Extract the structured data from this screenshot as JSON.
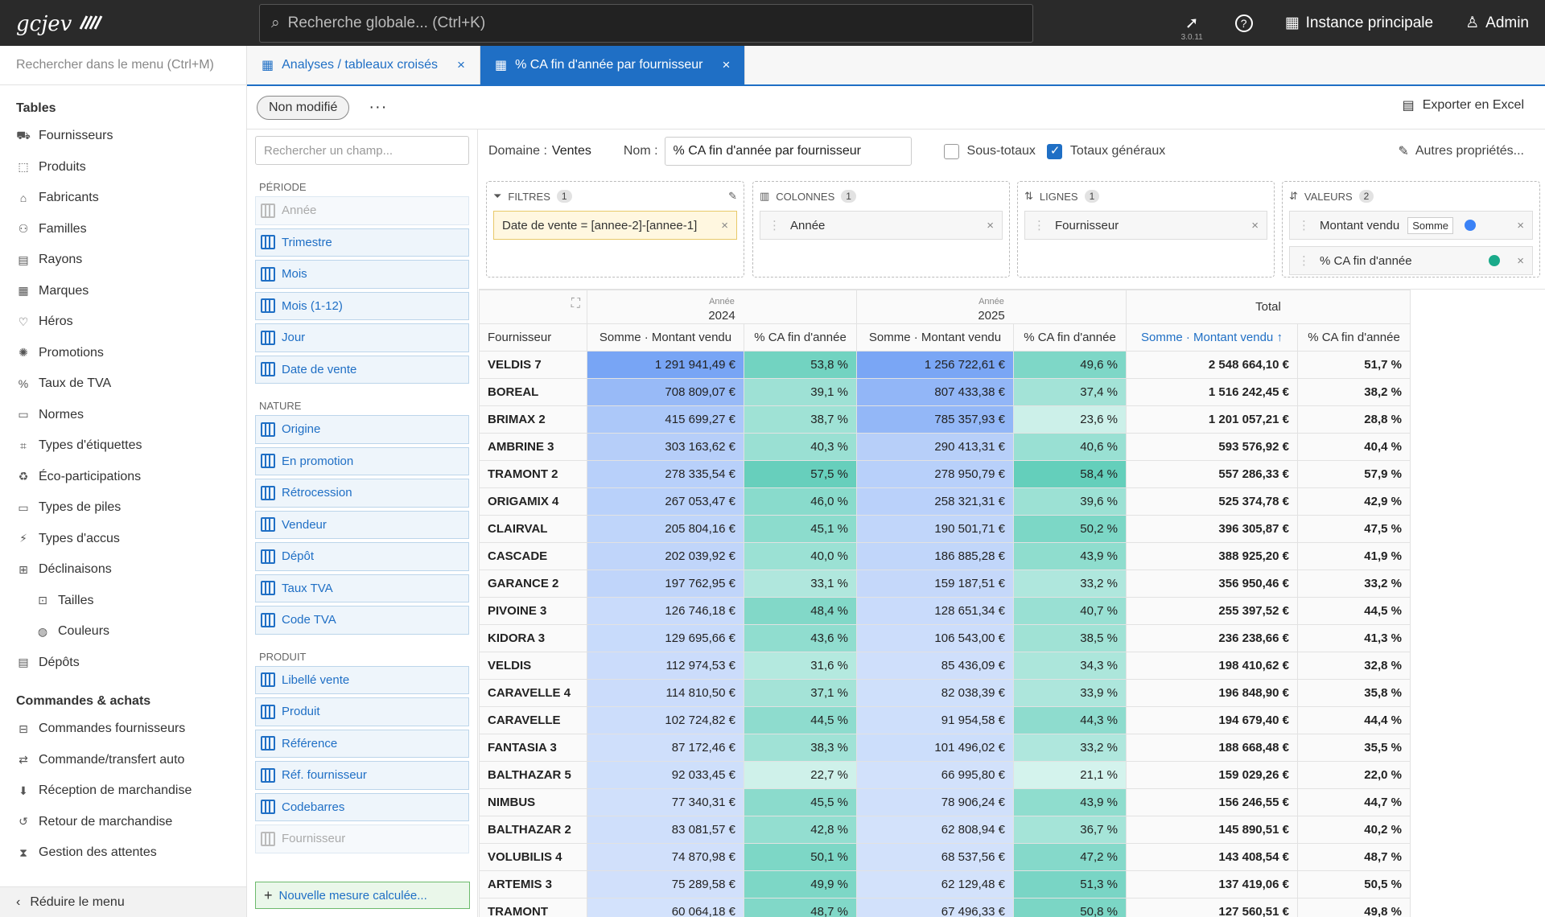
{
  "topbar": {
    "logo": "gcjev",
    "search_placeholder": "Recherche globale... (Ctrl+K)",
    "version": "3.0.11",
    "instance": "Instance principale",
    "user": "Admin"
  },
  "sidebar": {
    "search": "Rechercher dans le menu (Ctrl+M)",
    "section1": "Tables",
    "items": [
      {
        "label": "Fournisseurs",
        "icon": "truck-icon"
      },
      {
        "label": "Produits",
        "icon": "box-icon"
      },
      {
        "label": "Fabricants",
        "icon": "factory-icon"
      },
      {
        "label": "Familles",
        "icon": "family-icon"
      },
      {
        "label": "Rayons",
        "icon": "shelf-icon"
      },
      {
        "label": "Marques",
        "icon": "building-icon"
      },
      {
        "label": "Héros",
        "icon": "heart-icon"
      },
      {
        "label": "Promotions",
        "icon": "promo-icon"
      },
      {
        "label": "Taux de TVA",
        "icon": "percent-icon"
      },
      {
        "label": "Normes",
        "icon": "norm-icon"
      },
      {
        "label": "Types d'étiquettes",
        "icon": "tag-icon"
      },
      {
        "label": "Éco-participations",
        "icon": "eco-icon"
      },
      {
        "label": "Types de piles",
        "icon": "battery-icon"
      },
      {
        "label": "Types d'accus",
        "icon": "accu-icon"
      },
      {
        "label": "Déclinaisons",
        "icon": "variants-icon"
      }
    ],
    "subitems": [
      {
        "label": "Tailles",
        "icon": "size-icon"
      },
      {
        "label": "Couleurs",
        "icon": "palette-icon"
      }
    ],
    "item_depots": "Dépôts",
    "section2": "Commandes & achats",
    "items2": [
      {
        "label": "Commandes fournisseurs",
        "icon": "order-icon"
      },
      {
        "label": "Commande/transfert auto",
        "icon": "transfer-icon"
      },
      {
        "label": "Réception de marchandise",
        "icon": "receive-icon"
      },
      {
        "label": "Retour de marchandise",
        "icon": "return-icon"
      },
      {
        "label": "Gestion des attentes",
        "icon": "hourglass-icon"
      }
    ],
    "collapse": "Réduire le menu"
  },
  "tabs": [
    {
      "label": "Analyses / tableaux croisés"
    },
    {
      "label": "% CA fin d'année par fournisseur"
    }
  ],
  "subbar": {
    "status": "Non modifié",
    "export": "Exporter en Excel"
  },
  "config": {
    "domain_label": "Domaine :",
    "domain_value": "Ventes",
    "name_label": "Nom :",
    "name_value": "% CA fin d'année par fournisseur",
    "subtotals": "Sous-totaux",
    "grand_totals": "Totaux généraux",
    "more": "Autres propriétés..."
  },
  "fields": {
    "search_placeholder": "Rechercher un champ...",
    "group1": "Période",
    "group1_items": [
      "Année",
      "Trimestre",
      "Mois",
      "Mois (1-12)",
      "Jour",
      "Date de vente"
    ],
    "group2": "Nature",
    "group2_items": [
      "Origine",
      "En promotion",
      "Rétrocession",
      "Vendeur",
      "Dépôt",
      "Taux TVA",
      "Code TVA"
    ],
    "group3": "Produit",
    "group3_items": [
      "Libellé vente",
      "Produit",
      "Référence",
      "Réf. fournisseur",
      "Codebarres",
      "Fournisseur"
    ],
    "new_measure": "Nouvelle mesure calculée..."
  },
  "boxes": {
    "filters": {
      "title": "Filtres",
      "count": "1",
      "chip": "Date de vente = [annee-2]-[annee-1]"
    },
    "columns": {
      "title": "Colonnes",
      "count": "1",
      "chip": "Année"
    },
    "rows": {
      "title": "Lignes",
      "count": "1",
      "chip": "Fournisseur"
    },
    "values": {
      "title": "Valeurs",
      "count": "2",
      "chip1": "Montant vendu",
      "agg": "Somme",
      "chip2": "% CA fin d'année",
      "color1": "#3b82f6",
      "color2": "#1aaa8a"
    }
  },
  "table": {
    "year_label": "Année",
    "years": [
      "2024",
      "2025"
    ],
    "total_label": "Total",
    "row_header": "Fournisseur",
    "col_montant": "Somme · Montant vendu",
    "col_pct": "% CA fin d'année",
    "col_montant_sorted": "Somme · Montant vendu ↑",
    "rows": [
      [
        "VELDIS 7",
        "1 291 941,49 €",
        "53,8 %",
        "1 256 722,61 €",
        "49,6 %",
        "2 548 664,10 €",
        "51,7 %"
      ],
      [
        "BOREAL",
        "708 809,07 €",
        "39,1 %",
        "807 433,38 €",
        "37,4 %",
        "1 516 242,45 €",
        "38,2 %"
      ],
      [
        "BRIMAX 2",
        "415 699,27 €",
        "38,7 %",
        "785 357,93 €",
        "23,6 %",
        "1 201 057,21 €",
        "28,8 %"
      ],
      [
        "AMBRINE 3",
        "303 163,62 €",
        "40,3 %",
        "290 413,31 €",
        "40,6 %",
        "593 576,92 €",
        "40,4 %"
      ],
      [
        "TRAMONT 2",
        "278 335,54 €",
        "57,5 %",
        "278 950,79 €",
        "58,4 %",
        "557 286,33 €",
        "57,9 %"
      ],
      [
        "ORIGAMIX 4",
        "267 053,47 €",
        "46,0 %",
        "258 321,31 €",
        "39,6 %",
        "525 374,78 €",
        "42,9 %"
      ],
      [
        "CLAIRVAL",
        "205 804,16 €",
        "45,1 %",
        "190 501,71 €",
        "50,2 %",
        "396 305,87 €",
        "47,5 %"
      ],
      [
        "CASCADE",
        "202 039,92 €",
        "40,0 %",
        "186 885,28 €",
        "43,9 %",
        "388 925,20 €",
        "41,9 %"
      ],
      [
        "GARANCE 2",
        "197 762,95 €",
        "33,1 %",
        "159 187,51 €",
        "33,2 %",
        "356 950,46 €",
        "33,2 %"
      ],
      [
        "PIVOINE 3",
        "126 746,18 €",
        "48,4 %",
        "128 651,34 €",
        "40,7 %",
        "255 397,52 €",
        "44,5 %"
      ],
      [
        "KIDORA 3",
        "129 695,66 €",
        "43,6 %",
        "106 543,00 €",
        "38,5 %",
        "236 238,66 €",
        "41,3 %"
      ],
      [
        "VELDIS",
        "112 974,53 €",
        "31,6 %",
        "85 436,09 €",
        "34,3 %",
        "198 410,62 €",
        "32,8 %"
      ],
      [
        "CARAVELLE 4",
        "114 810,50 €",
        "37,1 %",
        "82 038,39 €",
        "33,9 %",
        "196 848,90 €",
        "35,8 %"
      ],
      [
        "CARAVELLE",
        "102 724,82 €",
        "44,5 %",
        "91 954,58 €",
        "44,3 %",
        "194 679,40 €",
        "44,4 %"
      ],
      [
        "FANTASIA 3",
        "87 172,46 €",
        "38,3 %",
        "101 496,02 €",
        "33,2 %",
        "188 668,48 €",
        "35,5 %"
      ],
      [
        "BALTHAZAR 5",
        "92 033,45 €",
        "22,7 %",
        "66 995,80 €",
        "21,1 %",
        "159 029,26 €",
        "22,0 %"
      ],
      [
        "NIMBUS",
        "77 340,31 €",
        "45,5 %",
        "78 906,24 €",
        "43,9 %",
        "156 246,55 €",
        "44,7 %"
      ],
      [
        "BALTHAZAR 2",
        "83 081,57 €",
        "42,8 %",
        "62 808,94 €",
        "36,7 %",
        "145 890,51 €",
        "40,2 %"
      ],
      [
        "VOLUBILIS 4",
        "74 870,98 €",
        "50,1 %",
        "68 537,56 €",
        "47,2 %",
        "143 408,54 €",
        "48,7 %"
      ],
      [
        "ARTEMIS 3",
        "75 289,58 €",
        "49,9 %",
        "62 129,48 €",
        "51,3 %",
        "137 419,06 €",
        "50,5 %"
      ],
      [
        "TRAMONT",
        "60 064,18 €",
        "48,7 %",
        "67 496,33 €",
        "50,8 %",
        "127 560,51 €",
        "49,8 %"
      ]
    ]
  }
}
